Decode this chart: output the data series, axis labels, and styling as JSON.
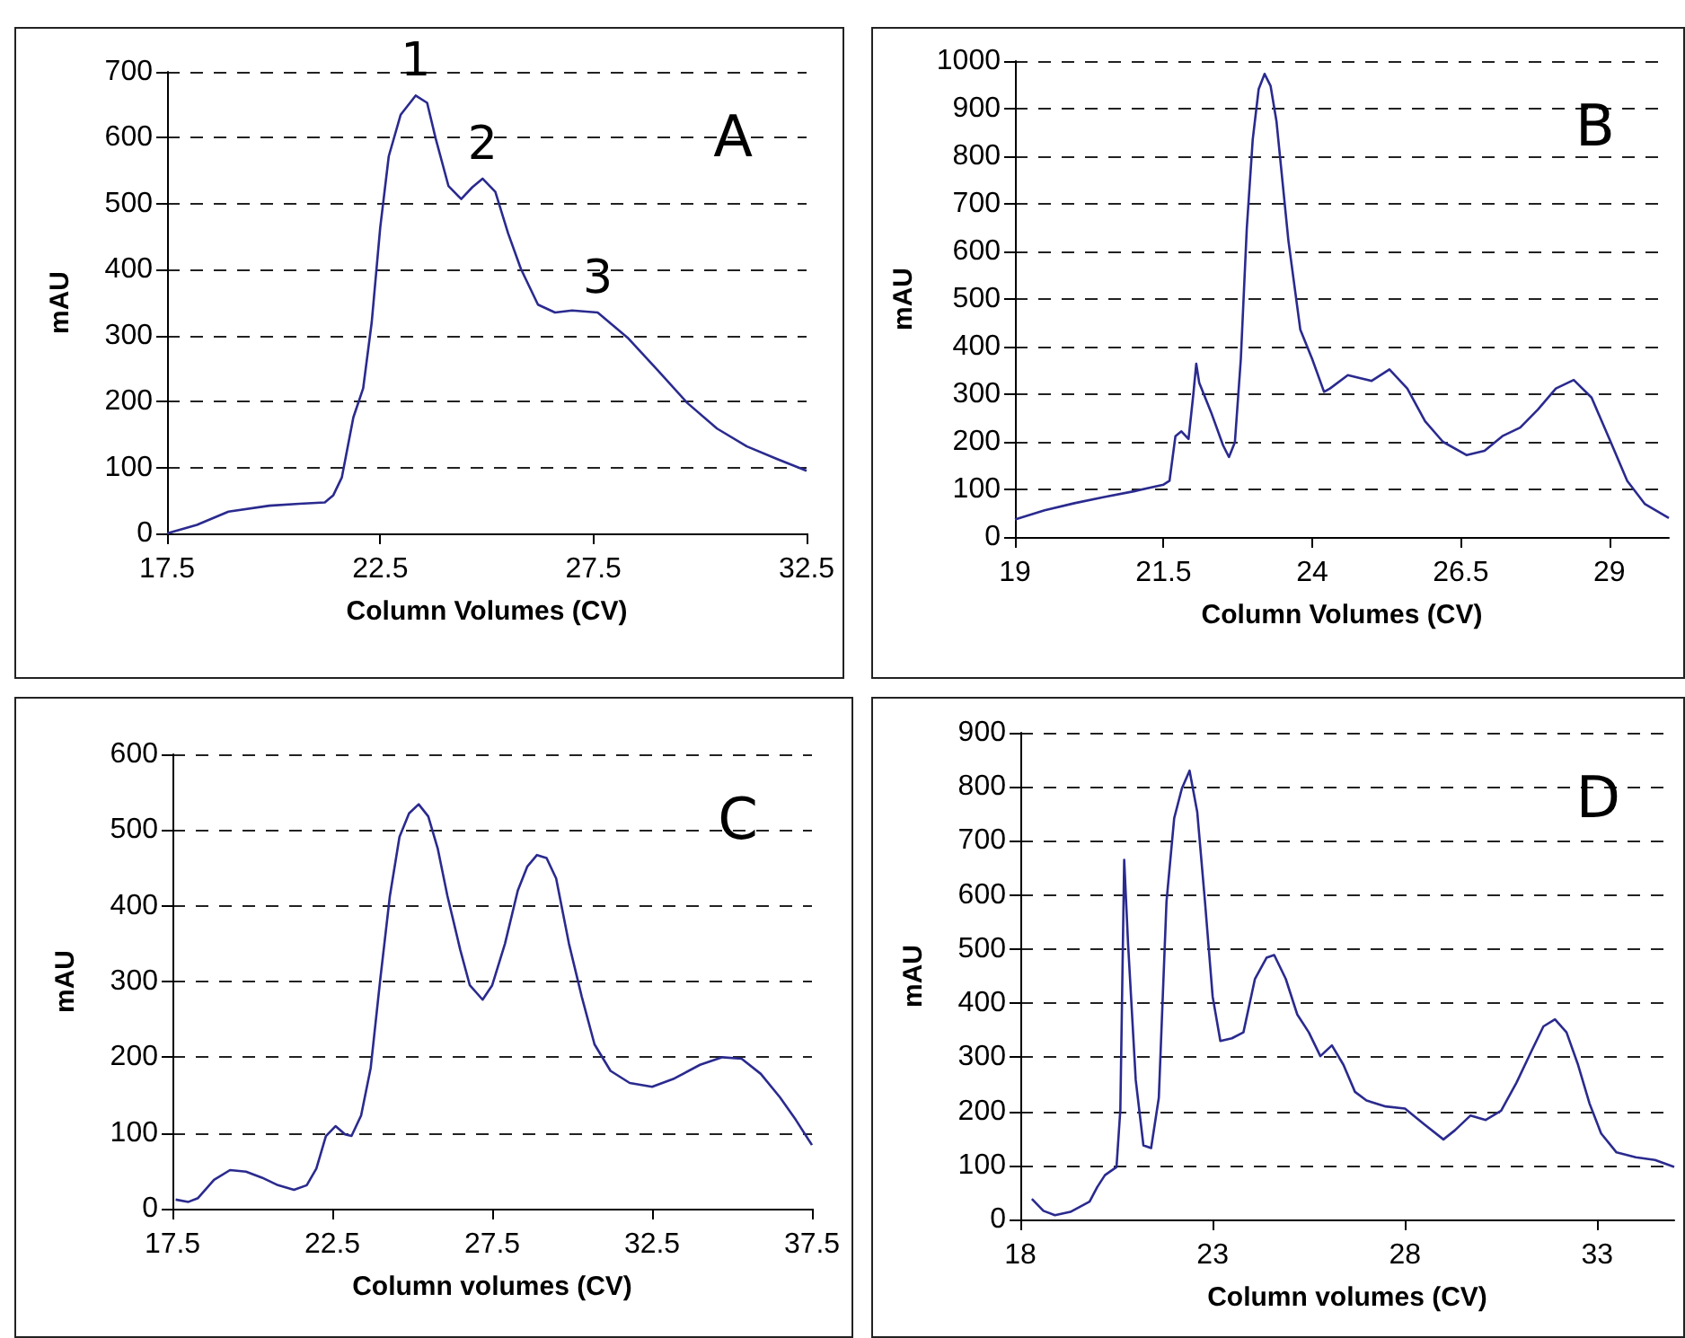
{
  "chart_data": [
    {
      "type": "line",
      "xlabel": "Column Volumes (CV)",
      "ylabel": "mAU",
      "xlim": [
        17.5,
        32.5
      ],
      "xticks": [
        17.5,
        22.5,
        27.5,
        32.5
      ],
      "ylim": [
        0,
        700
      ],
      "yticks": [
        0,
        100,
        200,
        300,
        400,
        500,
        600,
        700
      ],
      "grid": "y",
      "color": "#2a2a8f",
      "x": [
        17.5,
        18.2,
        18.94,
        19.9,
        20.6,
        21.2,
        21.4,
        21.6,
        21.87,
        22.1,
        22.3,
        22.5,
        22.7,
        22.98,
        23.33,
        23.6,
        23.8,
        24.1,
        24.4,
        24.66,
        24.9,
        25.2,
        25.5,
        25.8,
        26.2,
        26.6,
        27.0,
        27.6,
        28.3,
        29.0,
        29.7,
        30.4,
        31.1,
        31.8,
        32.5
      ],
      "values": [
        0,
        13,
        33,
        42,
        45,
        47,
        58,
        85,
        176,
        220,
        320,
        464,
        572,
        635,
        664,
        653,
        599,
        527,
        507,
        525,
        538,
        518,
        455,
        401,
        347,
        335,
        338,
        335,
        297,
        248,
        198,
        159,
        132,
        113,
        95
      ],
      "annotations": [
        {
          "text": "1",
          "x": 23.33,
          "y": 664
        },
        {
          "text": "2",
          "x": 24.9,
          "y": 538
        },
        {
          "text": "3",
          "x": 27.6,
          "y": 335
        },
        "A"
      ]
    },
    {
      "type": "line",
      "xlabel": "Column Volumes (CV)",
      "ylabel": "mAU",
      "xlim": [
        19,
        30
      ],
      "xticks": [
        19,
        21.5,
        24,
        26.5,
        29
      ],
      "ylim": [
        0,
        1000
      ],
      "yticks": [
        0,
        100,
        200,
        300,
        400,
        500,
        600,
        700,
        800,
        900,
        1000
      ],
      "grid": "y",
      "color": "#2a2a8f",
      "x": [
        19.0,
        19.5,
        20,
        20.5,
        21,
        21.5,
        21.6,
        21.7,
        21.8,
        21.92,
        22.0,
        22.05,
        22.1,
        22.3,
        22.5,
        22.6,
        22.7,
        22.8,
        22.9,
        23.0,
        23.1,
        23.2,
        23.3,
        23.4,
        23.6,
        23.8,
        24.0,
        24.2,
        24.3,
        24.6,
        24.8,
        25.0,
        25.3,
        25.6,
        25.9,
        26.2,
        26.6,
        26.9,
        27.2,
        27.5,
        27.8,
        28.1,
        28.4,
        28.7,
        29.0,
        29.3,
        29.6,
        30.0
      ],
      "values": [
        37,
        56,
        71,
        84,
        96,
        110,
        118,
        212,
        222,
        206,
        299,
        364,
        324,
        262,
        193,
        168,
        199,
        374,
        648,
        835,
        941,
        973,
        948,
        873,
        623,
        436,
        374,
        305,
        312,
        340,
        334,
        328,
        352,
        312,
        243,
        200,
        172,
        181,
        212,
        230,
        268,
        312,
        330,
        293,
        206,
        118,
        69,
        40
      ],
      "annotations": [
        "B"
      ]
    },
    {
      "type": "line",
      "xlabel": "Column volumes (CV)",
      "ylabel": "mAU",
      "xlim": [
        17.5,
        37.5
      ],
      "xticks": [
        17.5,
        22.5,
        27.5,
        32.5,
        37.5
      ],
      "ylim": [
        0,
        600
      ],
      "yticks": [
        0,
        100,
        200,
        300,
        400,
        500,
        600
      ],
      "grid": "y",
      "color": "#2a2a8f",
      "x": [
        17.6,
        18.0,
        18.3,
        18.8,
        19.3,
        19.8,
        20.3,
        20.8,
        21.3,
        21.7,
        22.0,
        22.3,
        22.6,
        22.9,
        23.1,
        23.4,
        23.7,
        24.0,
        24.3,
        24.6,
        24.9,
        25.2,
        25.5,
        25.8,
        26.1,
        26.5,
        26.8,
        27.2,
        27.5,
        27.9,
        28.3,
        28.6,
        28.9,
        29.2,
        29.5,
        29.9,
        30.3,
        30.7,
        31.2,
        31.8,
        32.5,
        33.2,
        34.0,
        34.7,
        35.3,
        35.9,
        36.5,
        37.0,
        37.5
      ],
      "values": [
        12,
        9,
        14,
        38,
        51,
        49,
        41,
        31,
        25,
        31,
        53,
        96,
        109,
        98,
        96,
        123,
        186,
        303,
        413,
        491,
        522,
        534,
        518,
        475,
        413,
        342,
        295,
        276,
        295,
        350,
        420,
        452,
        467,
        463,
        436,
        350,
        280,
        217,
        182,
        166,
        161,
        172,
        190,
        200,
        198,
        178,
        147,
        117,
        84
      ],
      "annotations": [
        "C"
      ]
    },
    {
      "type": "line",
      "xlabel": "Column volumes (CV)",
      "ylabel": "mAU",
      "xlim": [
        18,
        35
      ],
      "xticks": [
        18,
        23,
        28,
        33
      ],
      "ylim": [
        0,
        900
      ],
      "yticks": [
        0,
        100,
        200,
        300,
        400,
        500,
        600,
        700,
        800,
        900
      ],
      "grid": "y",
      "color": "#2a2a8f",
      "x": [
        18.3,
        18.6,
        18.9,
        19.3,
        19.8,
        20.0,
        20.2,
        20.5,
        20.6,
        20.7,
        20.8,
        21.0,
        21.2,
        21.4,
        21.6,
        21.8,
        22.0,
        22.2,
        22.4,
        22.6,
        22.8,
        23.0,
        23.2,
        23.5,
        23.8,
        24.1,
        24.4,
        24.6,
        24.9,
        25.2,
        25.5,
        25.8,
        26.1,
        26.4,
        26.7,
        27.0,
        27.5,
        28.0,
        28.5,
        29.0,
        29.3,
        29.7,
        30.1,
        30.5,
        30.9,
        31.3,
        31.6,
        31.9,
        32.2,
        32.5,
        32.8,
        33.1,
        33.5,
        34.0,
        34.5,
        35.0
      ],
      "values": [
        38,
        16,
        8,
        14,
        33,
        60,
        82,
        97,
        203,
        665,
        511,
        258,
        137,
        132,
        225,
        588,
        742,
        797,
        830,
        753,
        588,
        412,
        330,
        335,
        346,
        445,
        484,
        489,
        445,
        379,
        346,
        302,
        322,
        286,
        236,
        220,
        209,
        205,
        176,
        148,
        165,
        192,
        184,
        201,
        253,
        313,
        357,
        370,
        346,
        286,
        214,
        159,
        124,
        115,
        110,
        97
      ],
      "annotations": [
        "D"
      ]
    }
  ]
}
